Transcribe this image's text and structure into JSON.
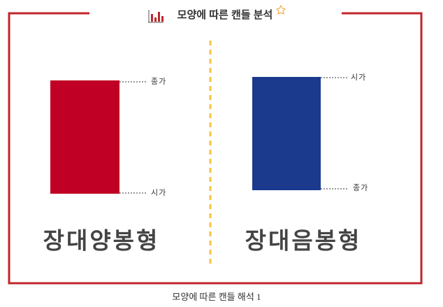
{
  "title": "모양에 따른 캔들 분석",
  "panels": [
    {
      "name": "장대양봉형",
      "top_label": "종가",
      "bottom_label": "시가"
    },
    {
      "name": "장대음봉형",
      "top_label": "시가",
      "bottom_label": "종가"
    }
  ],
  "caption": "모양에 따른 캔들 해석 1"
}
